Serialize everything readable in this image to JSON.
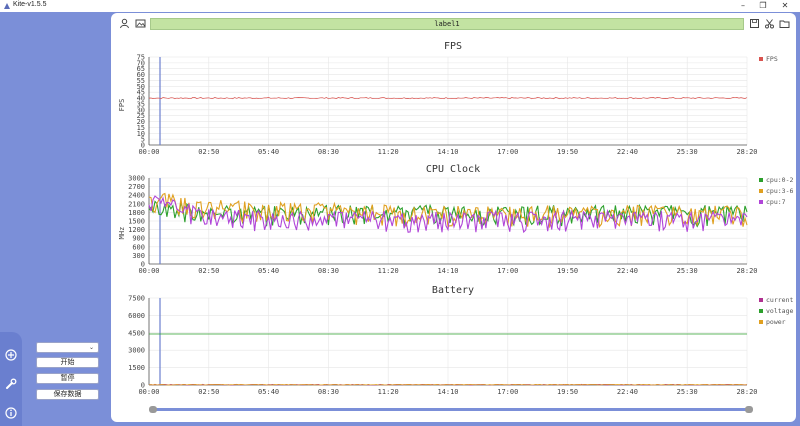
{
  "window": {
    "title": "Kite-v1.5.5"
  },
  "toolbar": {
    "label": "label1"
  },
  "sidebar": {
    "select_value": "",
    "buttons": {
      "start": "开始",
      "pause": "暂停",
      "save": "保存数据"
    }
  },
  "colors": {
    "fps": "#d9534f",
    "cpu0": "#2ca02c",
    "cpu3": "#e0a020",
    "cpu7": "#b045d8",
    "current": "#b03090",
    "voltage": "#2ca02c",
    "power": "#e0a020",
    "accent": "#7b8fd8"
  },
  "icons": [
    "user-icon",
    "image-icon",
    "save-icon",
    "scissors-icon",
    "folder-icon",
    "add-icon",
    "wrench-icon",
    "info-icon"
  ],
  "chart_data": [
    {
      "type": "line",
      "title": "FPS",
      "ylabel": "FPS",
      "ylim": [
        0,
        75
      ],
      "yticks": [
        "0",
        "5",
        "10",
        "15",
        "20",
        "25",
        "30",
        "35",
        "40",
        "45",
        "50",
        "55",
        "60",
        "65",
        "70",
        "75"
      ],
      "xticks": [
        "00:00",
        "02:50",
        "05:40",
        "08:30",
        "11:20",
        "14:10",
        "17:00",
        "19:50",
        "22:40",
        "25:30",
        "28:20"
      ],
      "grid": true,
      "legend": "top-right",
      "series": [
        {
          "name": "FPS",
          "values": [
            40,
            40,
            40,
            40,
            40,
            40,
            40,
            40,
            40,
            40,
            40
          ]
        }
      ]
    },
    {
      "type": "line",
      "title": "CPU Clock",
      "ylabel": "MHz",
      "ylim": [
        0,
        3000
      ],
      "yticks": [
        "0",
        "300",
        "600",
        "900",
        "1200",
        "1500",
        "1800",
        "2100",
        "2400",
        "2700",
        "3000"
      ],
      "xticks": [
        "00:00",
        "02:50",
        "05:40",
        "08:30",
        "11:20",
        "14:10",
        "17:00",
        "19:50",
        "22:40",
        "25:30",
        "28:20"
      ],
      "grid": true,
      "legend": "top-right",
      "series": [
        {
          "name": "cpu:0-2",
          "values": [
            2000,
            1800,
            1800,
            1800,
            1800,
            1800,
            1800,
            1800,
            1800,
            1800,
            1800
          ]
        },
        {
          "name": "cpu:3-6",
          "values": [
            2300,
            2000,
            1900,
            1900,
            1800,
            1800,
            1800,
            1800,
            1800,
            1800,
            1800
          ]
        },
        {
          "name": "cpu:7",
          "values": [
            2200,
            1700,
            1600,
            1600,
            1600,
            1600,
            1600,
            1600,
            1600,
            1600,
            1600
          ]
        }
      ]
    },
    {
      "type": "line",
      "title": "Battery",
      "ylabel": "",
      "ylim": [
        0,
        7500
      ],
      "yticks": [
        "0",
        "1500",
        "3000",
        "4500",
        "6000",
        "7500"
      ],
      "xticks": [
        "00:00",
        "02:50",
        "05:40",
        "08:30",
        "11:20",
        "14:10",
        "17:00",
        "19:50",
        "22:40",
        "25:30",
        "28:20"
      ],
      "grid": true,
      "legend": "top-right",
      "series": [
        {
          "name": "current",
          "values": [
            0,
            0,
            0,
            0,
            0,
            0,
            0,
            0,
            0,
            0,
            0
          ]
        },
        {
          "name": "voltage",
          "values": [
            4400,
            4400,
            4400,
            4400,
            4400,
            4400,
            4400,
            4400,
            4400,
            4400,
            4400
          ]
        },
        {
          "name": "power",
          "values": [
            0,
            0,
            0,
            0,
            0,
            0,
            0,
            0,
            0,
            0,
            0
          ]
        }
      ]
    }
  ]
}
